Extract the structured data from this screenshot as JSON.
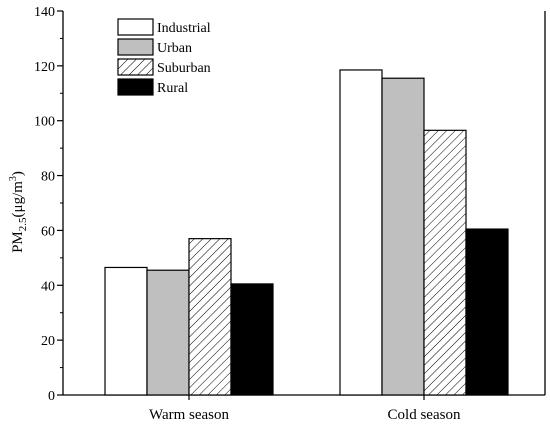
{
  "chart_data": {
    "type": "bar",
    "categories": [
      "Warm season",
      "Cold season"
    ],
    "series": [
      {
        "name": "Industrial",
        "values": [
          46.5,
          118.5
        ],
        "fill": "white"
      },
      {
        "name": "Urban",
        "values": [
          45.5,
          115.5
        ],
        "fill": "gray"
      },
      {
        "name": "Suburban",
        "values": [
          57,
          96.5
        ],
        "fill": "hatched"
      },
      {
        "name": "Rural",
        "values": [
          40.5,
          60.5
        ],
        "fill": "black"
      }
    ],
    "ylabel": {
      "prefix": "PM",
      "subscript": "2.5",
      "paren_open": "(",
      "unit": "μg/m",
      "unit_sup": "3",
      "paren_close": ")"
    },
    "ylim": [
      0,
      140
    ],
    "yticks": [
      "0",
      "20",
      "40",
      "60",
      "80",
      "100",
      "120",
      "140"
    ],
    "legend_position": "top-left",
    "grid": false,
    "colors": {
      "white": "#ffffff",
      "gray": "#bfbfbf",
      "black": "#000000",
      "axis": "#000000"
    }
  }
}
